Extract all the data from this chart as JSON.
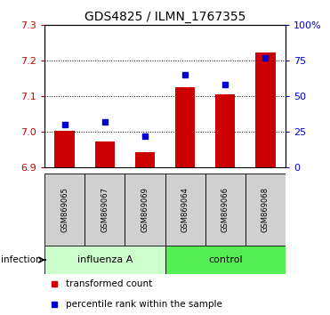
{
  "title": "GDS4825 / ILMN_1767355",
  "categories": [
    "GSM869065",
    "GSM869067",
    "GSM869069",
    "GSM869064",
    "GSM869066",
    "GSM869068"
  ],
  "red_values": [
    7.003,
    6.972,
    6.942,
    7.125,
    7.105,
    7.223
  ],
  "blue_values": [
    30,
    32,
    22,
    65,
    58,
    77
  ],
  "ylim_left": [
    6.9,
    7.3
  ],
  "yticks_left": [
    6.9,
    7.0,
    7.1,
    7.2,
    7.3
  ],
  "yticks_right": [
    0,
    25,
    50,
    75,
    100
  ],
  "ylim_right": [
    0,
    100
  ],
  "bar_bottom": 6.9,
  "bar_color": "#cc0000",
  "dot_color": "#0000cc",
  "influenza_color": "#ccffcc",
  "control_color": "#55ee55",
  "background_color": "#ffffff",
  "tick_color_left": "#cc0000",
  "tick_color_right": "#0000cc",
  "legend_items": [
    "transformed count",
    "percentile rank within the sample"
  ],
  "infection_label": "infection"
}
